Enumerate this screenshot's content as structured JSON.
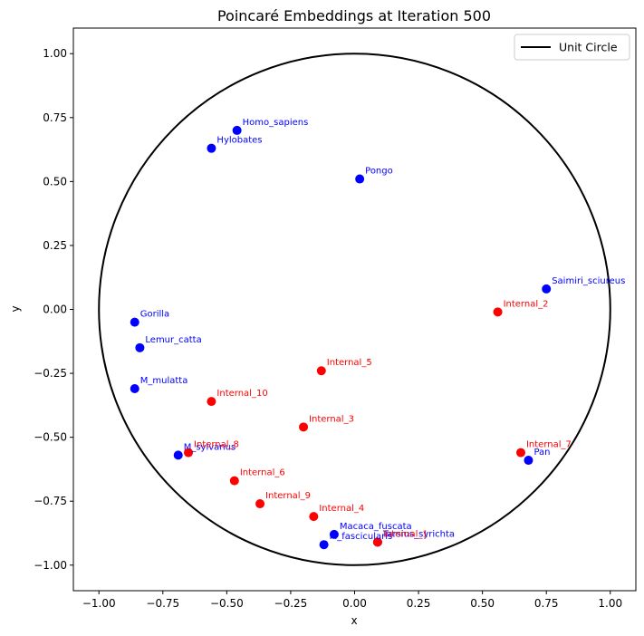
{
  "chart_data": {
    "type": "scatter",
    "title": "Poincaré Embeddings at Iteration 500",
    "xlabel": "x",
    "ylabel": "y",
    "xlim": [
      -1.1,
      1.1
    ],
    "ylim": [
      -1.1,
      1.1
    ],
    "xticks": [
      -1.0,
      -0.75,
      -0.5,
      -0.25,
      0.0,
      0.25,
      0.5,
      0.75,
      1.0
    ],
    "yticks": [
      -1.0,
      -0.75,
      -0.5,
      -0.25,
      0.0,
      0.25,
      0.5,
      0.75,
      1.0
    ],
    "xtick_labels": [
      "−1.00",
      "−0.75",
      "−0.50",
      "−0.25",
      "0.00",
      "0.25",
      "0.50",
      "0.75",
      "1.00"
    ],
    "ytick_labels": [
      "−1.00",
      "−0.75",
      "−0.50",
      "−0.25",
      "0.00",
      "0.25",
      "0.50",
      "0.75",
      "1.00"
    ],
    "grid": false,
    "legend": {
      "placement": "top-right",
      "entries": [
        {
          "label": "Unit Circle",
          "style": "line",
          "color": "#000000"
        }
      ]
    },
    "unit_circle": {
      "cx": 0.0,
      "cy": 0.0,
      "r": 1.0,
      "color": "#000000"
    },
    "colors": {
      "leaf": "#0000ff",
      "internal": "#ff0000"
    },
    "series": [
      {
        "kind": "leaf",
        "points": [
          {
            "label": "Homo_sapiens",
            "x": -0.46,
            "y": 0.7
          },
          {
            "label": "Hylobates",
            "x": -0.56,
            "y": 0.63
          },
          {
            "label": "Pongo",
            "x": 0.02,
            "y": 0.51
          },
          {
            "label": "Saimiri_sciureus",
            "x": 0.75,
            "y": 0.08
          },
          {
            "label": "Gorilla",
            "x": -0.86,
            "y": -0.05
          },
          {
            "label": "Lemur_catta",
            "x": -0.84,
            "y": -0.15
          },
          {
            "label": "M_mulatta",
            "x": -0.86,
            "y": -0.31
          },
          {
            "label": "M_sylvanus",
            "x": -0.69,
            "y": -0.57
          },
          {
            "label": "Pan",
            "x": 0.68,
            "y": -0.59
          },
          {
            "label": "Macaca_fuscata",
            "x": -0.08,
            "y": -0.88
          },
          {
            "label": "M_fascicularis",
            "x": -0.12,
            "y": -0.92
          },
          {
            "label": "Tarsius_syrichta",
            "x": 0.09,
            "y": -0.91
          }
        ]
      },
      {
        "kind": "internal",
        "points": [
          {
            "label": "Internal_2",
            "x": 0.56,
            "y": -0.01
          },
          {
            "label": "Internal_5",
            "x": -0.13,
            "y": -0.24
          },
          {
            "label": "Internal_10",
            "x": -0.56,
            "y": -0.36
          },
          {
            "label": "Internal_3",
            "x": -0.2,
            "y": -0.46
          },
          {
            "label": "Internal_8",
            "x": -0.65,
            "y": -0.56
          },
          {
            "label": "Internal_7",
            "x": 0.65,
            "y": -0.56
          },
          {
            "label": "Internal_6",
            "x": -0.47,
            "y": -0.67
          },
          {
            "label": "Internal_9",
            "x": -0.37,
            "y": -0.76
          },
          {
            "label": "Internal_4",
            "x": -0.16,
            "y": -0.81
          },
          {
            "label": "Internal_1",
            "x": 0.09,
            "y": -0.91
          }
        ]
      }
    ]
  }
}
